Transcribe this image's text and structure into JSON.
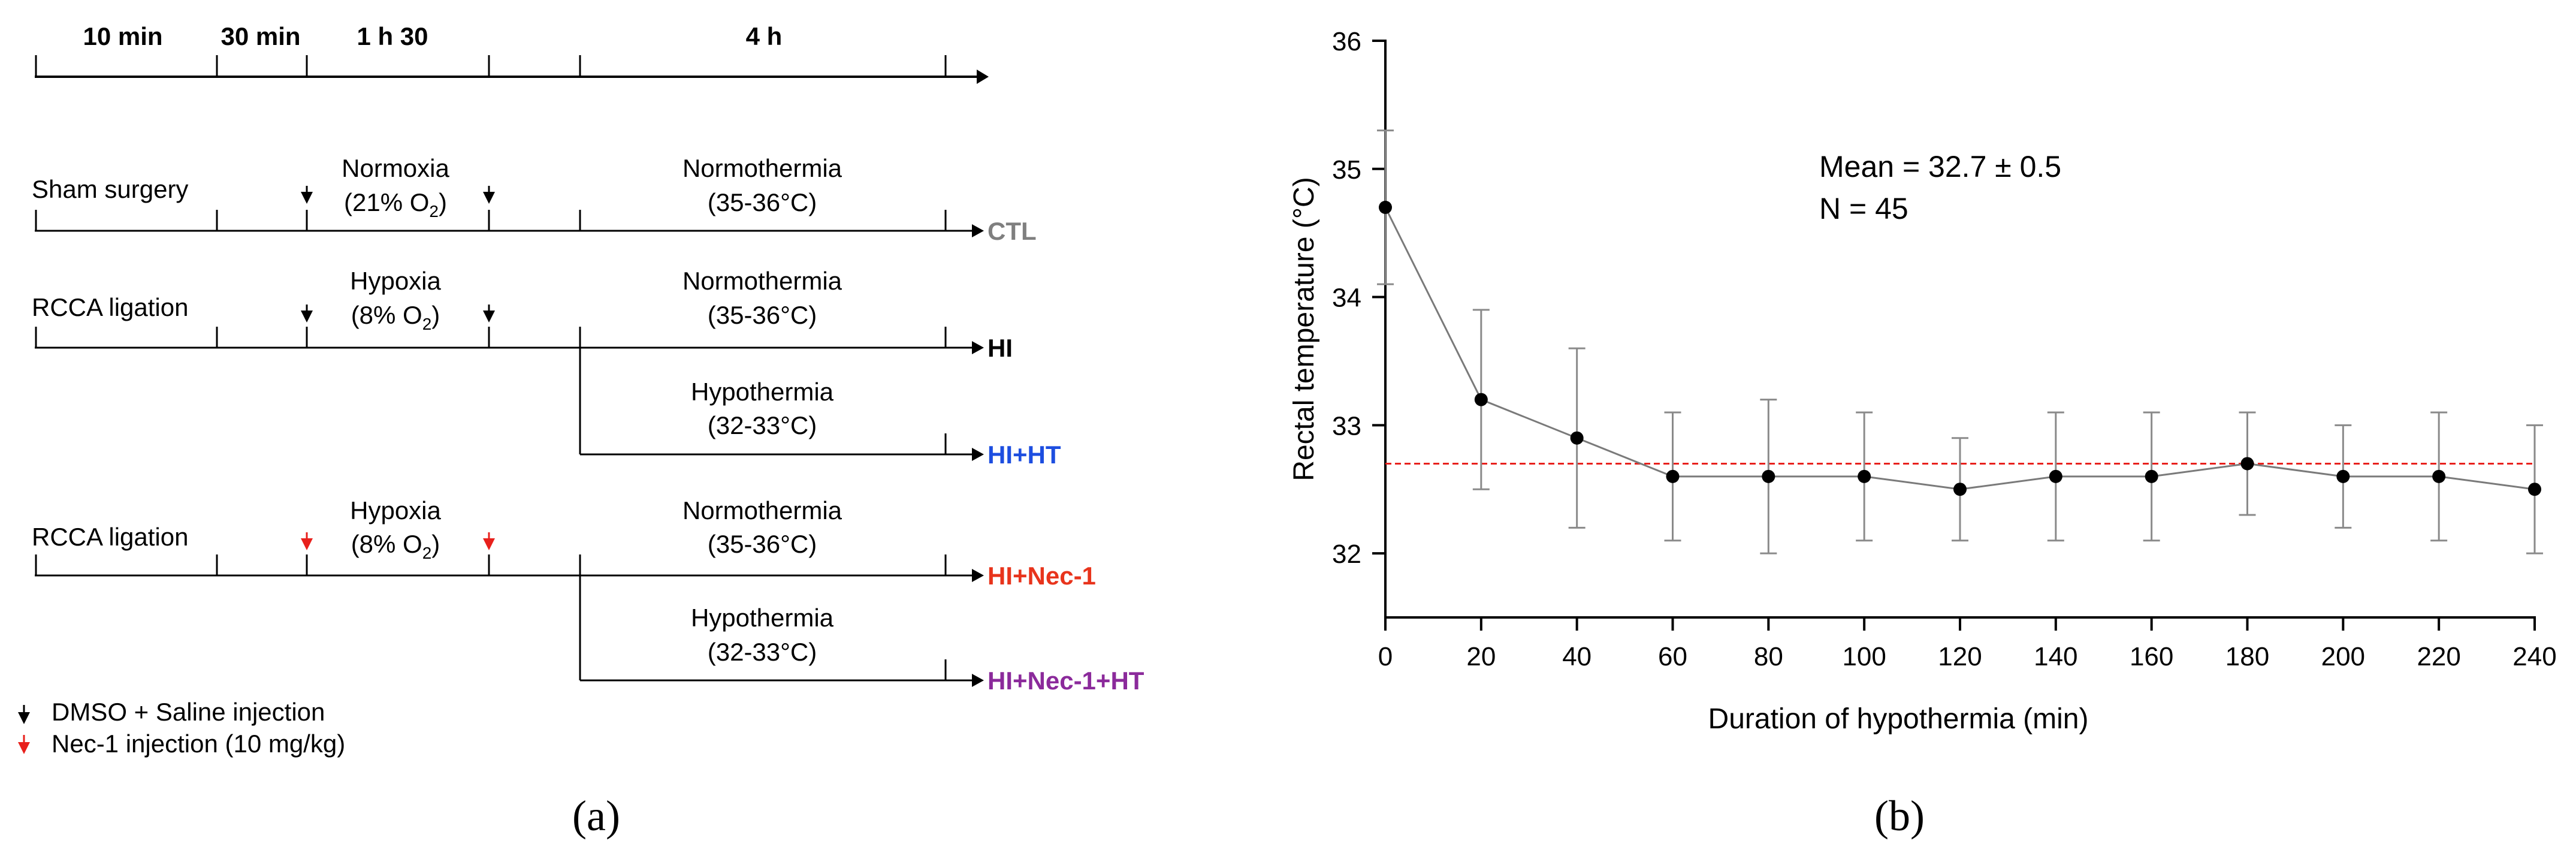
{
  "panel_a": {
    "label": "(a)",
    "time_axis": [
      "10 min",
      "30 min",
      "1 h 30",
      "4 h"
    ],
    "rows": [
      {
        "surgery": "Sham surgery",
        "phase1": "Normoxia",
        "phase1_o2": "(21% O",
        "phase1_o2_tail": ")",
        "phase1_sub": "2",
        "phase2": "Normothermia",
        "phase2_range": "(35-36°C)",
        "group": "CTL",
        "group_color": "#7f7f7f"
      },
      {
        "surgery": "RCCA ligation",
        "phase1": "Hypoxia",
        "phase1_o2": "(8% O",
        "phase1_o2_tail": ")",
        "phase1_sub": "2",
        "phase2": "Normothermia",
        "phase2_range": "(35-36°C)",
        "group": "HI",
        "group_color": "#000000"
      },
      {
        "phase2": "Hypothermia",
        "phase2_range": "(32-33°C)",
        "group": "HI+HT",
        "group_color": "#1d4ee0"
      },
      {
        "surgery": "RCCA ligation",
        "phase1": "Hypoxia",
        "phase1_o2": "(8% O",
        "phase1_o2_tail": ")",
        "phase1_sub": "2",
        "phase2": "Normothermia",
        "phase2_range": "(35-36°C)",
        "group": "HI+Nec-1",
        "group_color": "#e8341c"
      },
      {
        "phase2": "Hypothermia",
        "phase2_range": "(32-33°C)",
        "group": "HI+Nec-1+HT",
        "group_color": "#8b2a9b"
      }
    ],
    "legend": [
      {
        "text": "DMSO + Saline injection",
        "color": "#000000"
      },
      {
        "text": "Nec-1 injection (10 mg/kg)",
        "color": "#e8201c"
      }
    ]
  },
  "panel_b": {
    "label": "(b)",
    "annotation_mean": "Mean = 32.7 ± 0.5",
    "annotation_n": "N = 45"
  },
  "chart_data": {
    "type": "line",
    "title": "",
    "xlabel": "Duration of hypothermia (min)",
    "ylabel": "Rectal temperature (°C)",
    "x": [
      0,
      20,
      40,
      60,
      80,
      100,
      120,
      140,
      160,
      180,
      200,
      220,
      240
    ],
    "y": [
      34.7,
      33.2,
      32.9,
      32.6,
      32.6,
      32.6,
      32.5,
      32.6,
      32.6,
      32.7,
      32.6,
      32.6,
      32.5
    ],
    "err_low": [
      34.1,
      32.5,
      32.2,
      32.1,
      32.0,
      32.1,
      32.1,
      32.1,
      32.1,
      32.3,
      32.2,
      32.1,
      32.0
    ],
    "err_high": [
      35.3,
      33.9,
      33.6,
      33.1,
      33.2,
      33.1,
      32.9,
      33.1,
      33.1,
      33.1,
      33.0,
      33.1,
      33.0
    ],
    "mean_line": 32.7,
    "xlim": [
      0,
      240
    ],
    "ylim": [
      31.5,
      36
    ],
    "xticks": [
      0,
      20,
      40,
      60,
      80,
      100,
      120,
      140,
      160,
      180,
      200,
      220,
      240
    ],
    "yticks": [
      32,
      33,
      34,
      35,
      36
    ],
    "colors": {
      "line": "#7a7a7a",
      "marker": "#000000",
      "error": "#8a8a8a",
      "mean_line": "#e8201c"
    }
  }
}
